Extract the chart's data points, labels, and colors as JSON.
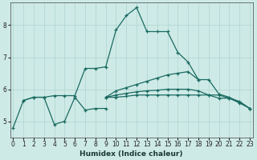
{
  "xlabel": "Humidex (Indice chaleur)",
  "bg_color": "#ceeae6",
  "grid_color": "#aed4d0",
  "line_color": "#1a6b62",
  "x_ticks": [
    0,
    1,
    2,
    3,
    4,
    5,
    6,
    7,
    8,
    9,
    10,
    11,
    12,
    13,
    14,
    15,
    16,
    17,
    18,
    19,
    20,
    21,
    22,
    23
  ],
  "ylim": [
    4.5,
    8.7
  ],
  "xlim": [
    -0.3,
    23.3
  ],
  "yticks": [
    5,
    6,
    7,
    8
  ],
  "curves": [
    {
      "x": [
        0,
        1,
        2,
        3,
        4,
        5,
        6,
        7,
        8,
        9
      ],
      "y": [
        4.8,
        5.65,
        5.75,
        5.75,
        4.9,
        5.0,
        5.75,
        5.35,
        5.4,
        5.4
      ]
    },
    {
      "x": [
        1,
        2,
        3,
        4,
        5,
        6,
        7,
        8,
        9,
        10,
        11,
        12,
        13,
        14,
        15,
        16,
        17,
        18
      ],
      "y": [
        5.65,
        5.75,
        5.75,
        5.8,
        5.8,
        5.8,
        6.65,
        6.65,
        6.7,
        7.85,
        8.3,
        8.55,
        7.8,
        7.8,
        7.8,
        7.15,
        6.85,
        6.3
      ]
    },
    {
      "x": [
        9,
        10,
        11,
        12,
        13,
        14,
        15,
        16,
        17,
        18,
        19,
        20,
        21,
        22,
        23
      ],
      "y": [
        5.75,
        5.95,
        6.05,
        6.15,
        6.25,
        6.35,
        6.45,
        6.5,
        6.55,
        6.3,
        6.3,
        5.85,
        5.75,
        5.6,
        5.4
      ]
    },
    {
      "x": [
        9,
        10,
        11,
        12,
        13,
        14,
        15,
        16,
        17,
        18,
        19,
        20,
        21,
        22,
        23
      ],
      "y": [
        5.75,
        5.82,
        5.87,
        5.92,
        5.95,
        5.97,
        6.0,
        6.0,
        6.0,
        5.95,
        5.82,
        5.72,
        5.72,
        5.57,
        5.4
      ]
    },
    {
      "x": [
        9,
        10,
        11,
        12,
        13,
        14,
        15,
        16,
        17,
        18,
        19,
        20,
        21,
        22,
        23
      ],
      "y": [
        5.75,
        5.75,
        5.78,
        5.82,
        5.82,
        5.82,
        5.82,
        5.82,
        5.82,
        5.82,
        5.82,
        5.82,
        5.72,
        5.62,
        5.4
      ]
    }
  ]
}
